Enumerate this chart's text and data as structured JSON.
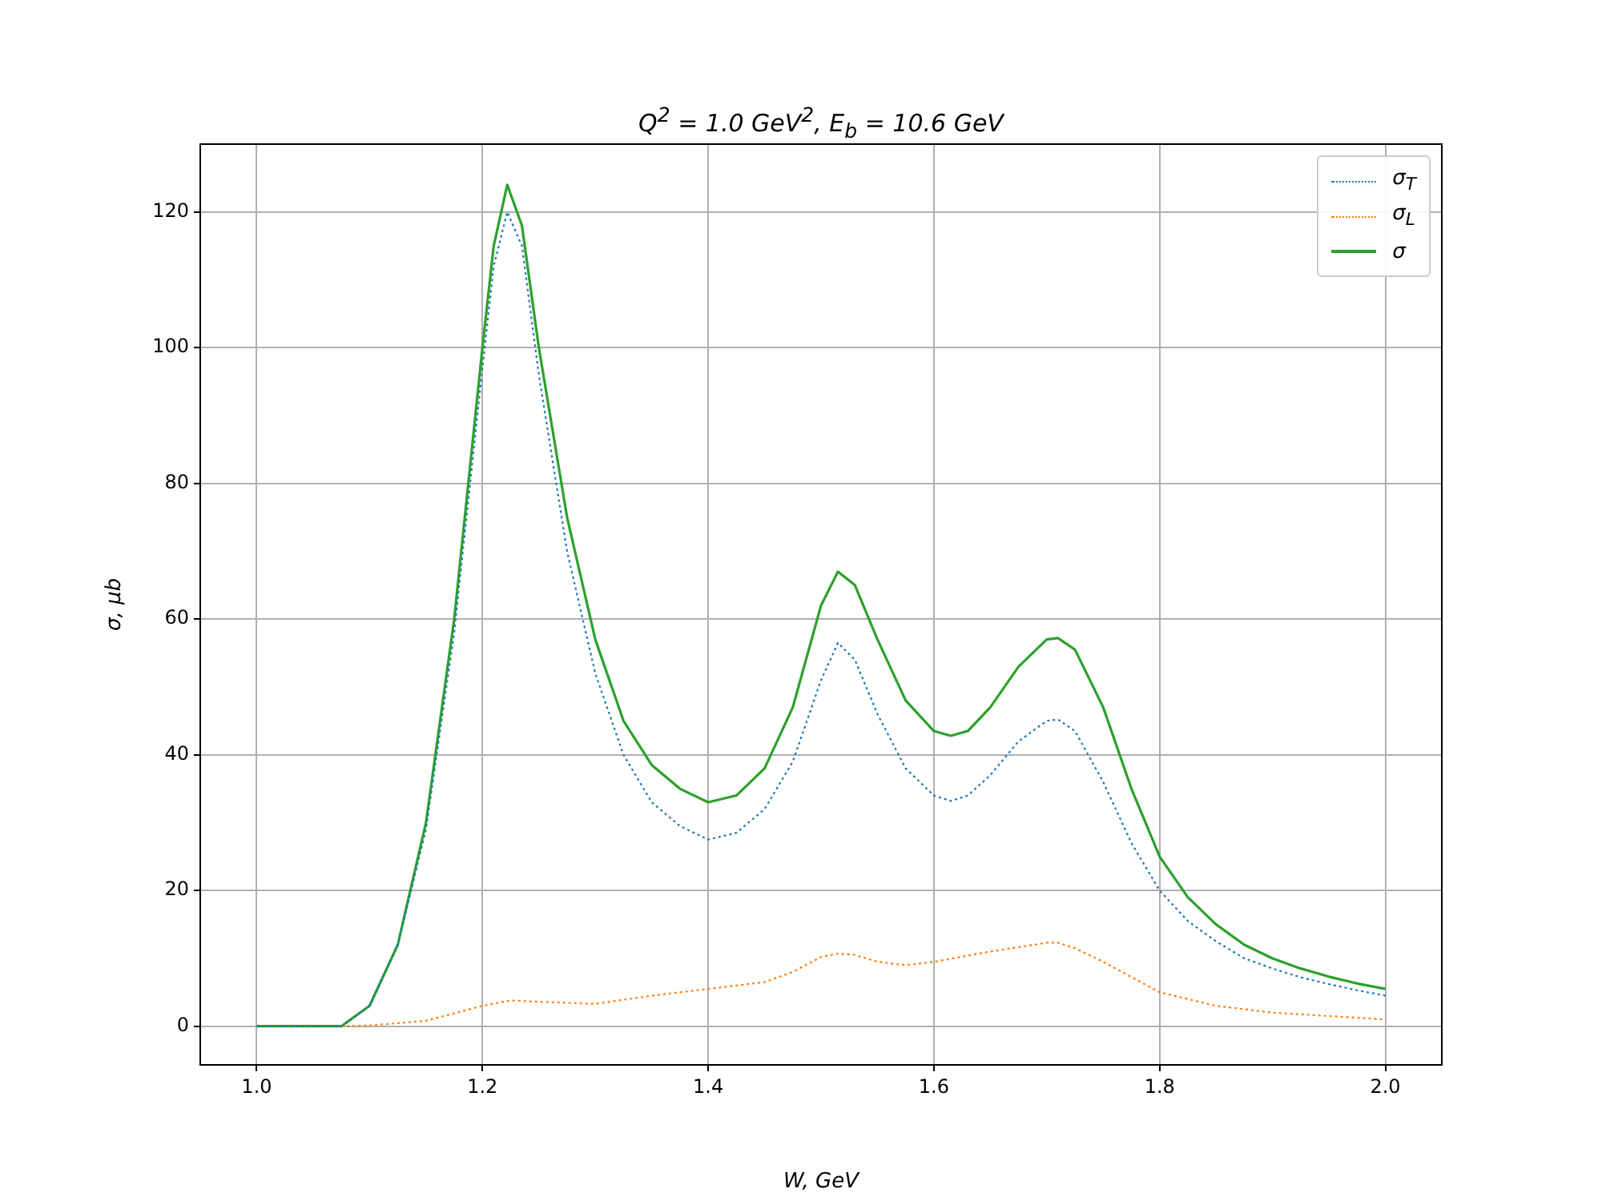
{
  "chart_data": {
    "type": "line",
    "title": "Q$^{2}$ = 1.0 GeV$^{2}$,  E$_{b}$ = 10.6 GeV",
    "xlabel": "W, GeV",
    "ylabel": "σ, μb",
    "xlim": [
      0.95,
      2.05
    ],
    "xticks": [
      {
        "value": 1,
        "label": "1.0"
      },
      1.2,
      1.4,
      1.6,
      1.8,
      {
        "value": 2,
        "label": "2.0"
      }
    ],
    "ylim": [
      -5.7,
      130
    ],
    "yticks": [
      0,
      20,
      40,
      60,
      80,
      100,
      120
    ],
    "grid": true,
    "legend": "top right",
    "series": [
      {
        "name": "σ$_{T}$",
        "color": "#1f77b4",
        "line_style": "dotted",
        "x": [
          1.0,
          1.075,
          1.1,
          1.125,
          1.15,
          1.175,
          1.2,
          1.21,
          1.222,
          1.235,
          1.25,
          1.275,
          1.3,
          1.325,
          1.35,
          1.375,
          1.4,
          1.425,
          1.45,
          1.475,
          1.5,
          1.515,
          1.53,
          1.55,
          1.575,
          1.6,
          1.615,
          1.63,
          1.65,
          1.675,
          1.7,
          1.71,
          1.725,
          1.75,
          1.775,
          1.8,
          1.825,
          1.85,
          1.875,
          1.9,
          1.925,
          1.95,
          1.975,
          2.0
        ],
        "values": [
          0,
          0,
          3,
          12,
          29,
          58,
          97,
          112,
          120,
          115,
          96,
          70,
          52,
          40,
          33,
          29.5,
          27.5,
          28.5,
          32,
          39,
          51,
          56.5,
          54,
          46,
          38,
          34,
          33.2,
          34,
          37,
          42,
          45,
          45.2,
          43.5,
          36,
          27,
          20,
          15.5,
          12.5,
          10,
          8.5,
          7.2,
          6.2,
          5.3,
          4.5
        ]
      },
      {
        "name": "σ$_{L}$",
        "color": "#ff7f0e",
        "line_style": "dotted",
        "x": [
          1.075,
          1.1,
          1.15,
          1.2,
          1.225,
          1.25,
          1.3,
          1.35,
          1.4,
          1.45,
          1.475,
          1.5,
          1.515,
          1.53,
          1.55,
          1.575,
          1.6,
          1.65,
          1.7,
          1.71,
          1.725,
          1.75,
          1.8,
          1.85,
          1.9,
          1.95,
          2.0
        ],
        "values": [
          0,
          0.1,
          0.8,
          3,
          3.8,
          3.6,
          3.3,
          4.5,
          5.5,
          6.5,
          8,
          10.2,
          10.7,
          10.5,
          9.5,
          9,
          9.5,
          11,
          12.3,
          12.3,
          11.5,
          9.5,
          5,
          3,
          2,
          1.5,
          1
        ]
      },
      {
        "name": "σ",
        "color": "#2ca02c",
        "line_style": "solid",
        "x": [
          1.0,
          1.075,
          1.1,
          1.125,
          1.15,
          1.175,
          1.2,
          1.21,
          1.222,
          1.235,
          1.25,
          1.275,
          1.3,
          1.325,
          1.35,
          1.375,
          1.4,
          1.425,
          1.45,
          1.475,
          1.5,
          1.515,
          1.53,
          1.55,
          1.575,
          1.6,
          1.615,
          1.63,
          1.65,
          1.675,
          1.7,
          1.71,
          1.725,
          1.75,
          1.775,
          1.8,
          1.825,
          1.85,
          1.875,
          1.9,
          1.925,
          1.95,
          1.975,
          2.0
        ],
        "values": [
          0,
          0,
          3,
          12,
          30,
          60,
          100,
          115,
          124,
          118,
          100,
          75,
          57,
          45,
          38.5,
          35,
          33,
          34,
          38,
          47,
          62,
          67,
          65,
          57,
          48,
          43.5,
          42.8,
          43.5,
          47,
          53,
          57,
          57.2,
          55.5,
          47,
          35,
          25,
          19,
          15,
          12,
          10,
          8.5,
          7.3,
          6.3,
          5.5
        ]
      }
    ]
  }
}
